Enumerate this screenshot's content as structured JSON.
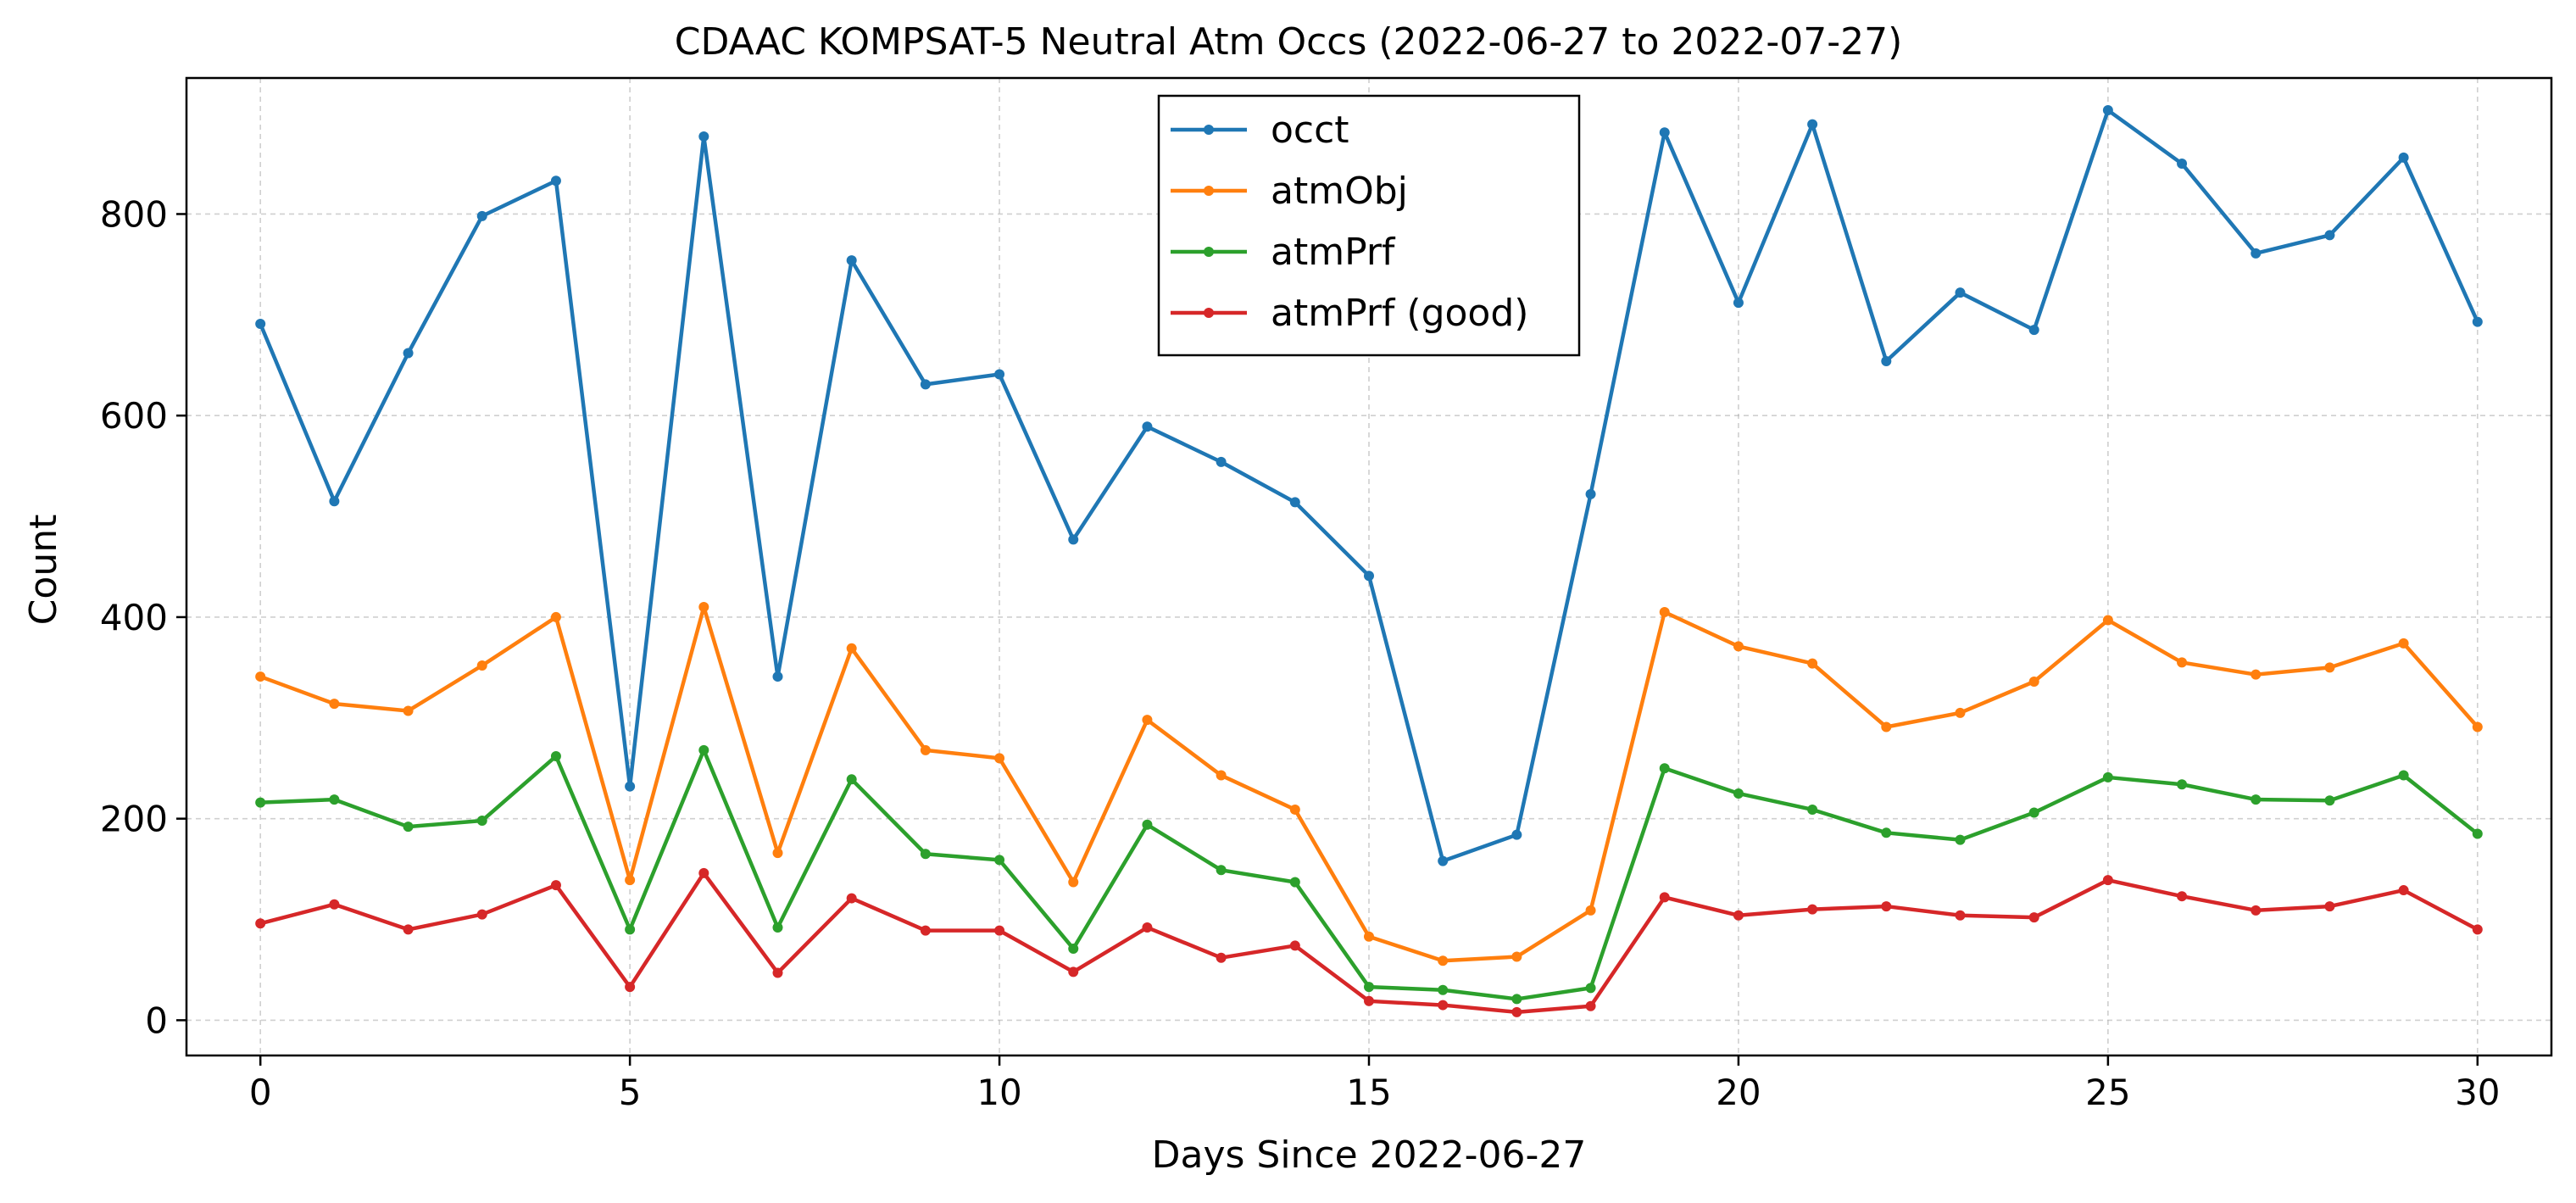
{
  "chart_data": {
    "type": "line",
    "title": "CDAAC KOMPSAT-5 Neutral Atm Occs (2022-06-27 to 2022-07-27)",
    "xlabel": "Days Since 2022-06-27",
    "ylabel": "Count",
    "xlim": [
      -1,
      31
    ],
    "ylim": [
      -35,
      935
    ],
    "xticks": [
      0,
      5,
      10,
      15,
      20,
      25,
      30
    ],
    "yticks": [
      0,
      200,
      400,
      600,
      800
    ],
    "grid": true,
    "legend_position": "top-center",
    "x": [
      0,
      1,
      2,
      3,
      4,
      5,
      6,
      7,
      8,
      9,
      10,
      11,
      12,
      13,
      14,
      15,
      16,
      17,
      18,
      19,
      20,
      21,
      22,
      23,
      24,
      25,
      26,
      27,
      28,
      29,
      30
    ],
    "series": [
      {
        "name": "occt",
        "color": "#1f77b4",
        "values": [
          691,
          515,
          662,
          798,
          833,
          232,
          877,
          341,
          754,
          631,
          641,
          477,
          589,
          554,
          514,
          441,
          158,
          184,
          522,
          881,
          712,
          889,
          654,
          722,
          685,
          903,
          850,
          761,
          779,
          856,
          693
        ]
      },
      {
        "name": "atmObj",
        "color": "#ff7f0e",
        "values": [
          341,
          314,
          307,
          352,
          400,
          139,
          410,
          166,
          369,
          268,
          260,
          137,
          298,
          243,
          209,
          83,
          59,
          63,
          109,
          405,
          371,
          354,
          291,
          305,
          336,
          397,
          355,
          343,
          350,
          374,
          291
        ]
      },
      {
        "name": "atmPrf",
        "color": "#2ca02c",
        "values": [
          216,
          219,
          192,
          198,
          262,
          90,
          268,
          92,
          239,
          165,
          159,
          71,
          194,
          149,
          137,
          33,
          30,
          21,
          32,
          250,
          225,
          209,
          186,
          179,
          206,
          241,
          234,
          219,
          218,
          243,
          185
        ]
      },
      {
        "name": "atmPrf (good)",
        "color": "#d62728",
        "values": [
          96,
          115,
          90,
          105,
          134,
          33,
          146,
          47,
          121,
          89,
          89,
          48,
          92,
          62,
          74,
          19,
          15,
          8,
          14,
          122,
          104,
          110,
          113,
          104,
          102,
          139,
          123,
          109,
          113,
          129,
          90
        ]
      }
    ]
  }
}
